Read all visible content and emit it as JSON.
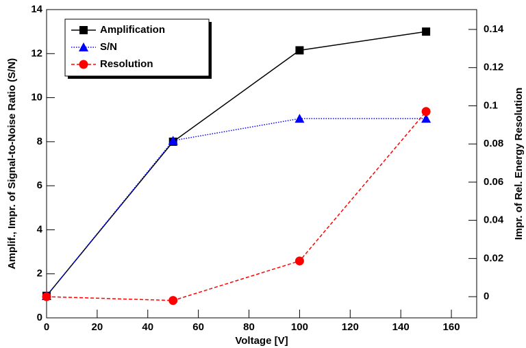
{
  "chart_data": {
    "type": "line",
    "x": [
      0,
      50,
      100,
      150
    ],
    "xlabel": "Voltage [V]",
    "ylabel": "Amplif., Impr. of Signal-to-Noise Ratio (S/N)",
    "y2label": "Impr. of Rel. Energy Resolution",
    "xlim": [
      0,
      170
    ],
    "xticks": [
      0,
      20,
      40,
      60,
      80,
      100,
      120,
      140,
      160
    ],
    "ylim": [
      0,
      14
    ],
    "yticks": [
      0,
      2,
      4,
      6,
      8,
      10,
      12,
      14
    ],
    "y2lim": [
      -0.0111,
      0.1504
    ],
    "y2ticks": [
      0,
      0.02,
      0.04,
      0.06,
      0.08,
      0.1,
      0.12,
      0.14
    ],
    "legend": "upper left",
    "series": [
      {
        "name": "Amplification",
        "color": "#000000",
        "marker": "square",
        "line": "solid",
        "values": [
          1,
          8,
          12.15,
          13
        ]
      },
      {
        "name": "S/N",
        "color": "#0000ff",
        "marker": "triangle",
        "line": "dotted",
        "values": [
          1,
          8.05,
          9.05,
          9.05
        ]
      },
      {
        "name": "Resolution",
        "color": "#ff0000",
        "marker": "circle",
        "line": "dashed",
        "axis": "y2",
        "values": [
          0,
          -0.002,
          0.0187,
          0.097
        ]
      }
    ]
  }
}
